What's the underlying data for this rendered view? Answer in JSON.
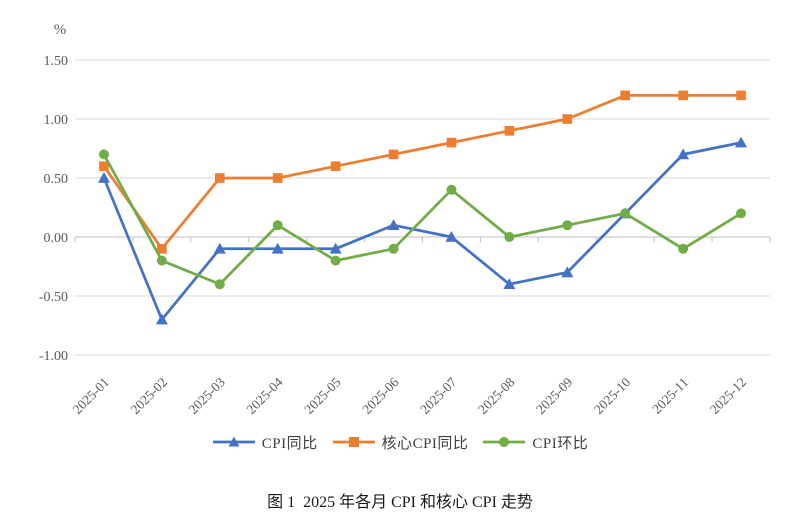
{
  "figure": {
    "caption": "图 1  2025 年各月 CPI 和核心 CPI 走势"
  },
  "theme": {
    "grid_color": "#d9d9d9",
    "axis_line_color": "#bfbfbf",
    "axis_text_color": "#595959",
    "legend_text_color": "#3f3f3f",
    "background": "#ffffff"
  },
  "chart_data": {
    "type": "line",
    "title": "",
    "xlabel": "",
    "ylabel": "",
    "y_unit_label": "%",
    "categories": [
      "2025-01",
      "2025-02",
      "2025-03",
      "2025-04",
      "2025-05",
      "2025-06",
      "2025-07",
      "2025-08",
      "2025-09",
      "2025-10",
      "2025-11",
      "2025-12"
    ],
    "series": [
      {
        "name": "CPI同比",
        "color": "#4472c4",
        "marker": "triangle",
        "values": [
          0.5,
          -0.7,
          -0.1,
          -0.1,
          -0.1,
          0.1,
          0.0,
          -0.4,
          -0.3,
          0.2,
          0.7,
          0.8
        ]
      },
      {
        "name": "核心CPI同比",
        "color": "#ed7d31",
        "marker": "square",
        "values": [
          0.6,
          -0.1,
          0.5,
          0.5,
          0.6,
          0.7,
          0.8,
          0.9,
          1.0,
          1.2,
          1.2,
          1.2
        ]
      },
      {
        "name": "CPI环比",
        "color": "#70ad47",
        "marker": "circle",
        "values": [
          0.7,
          -0.2,
          -0.4,
          0.1,
          -0.2,
          -0.1,
          0.4,
          0.0,
          0.1,
          0.2,
          -0.1,
          0.2
        ]
      }
    ],
    "ylim": [
      -1.0,
      1.5
    ],
    "y_ticks": [
      1.5,
      1.0,
      0.5,
      0.0,
      -0.5,
      -1.0
    ],
    "y_tick_labels": [
      "1.50",
      "1.00",
      "0.50",
      "0.00",
      "-0.50",
      "-1.00"
    ],
    "grid": true,
    "legend_position": "bottom",
    "x_labels_rotated_deg": 45
  }
}
